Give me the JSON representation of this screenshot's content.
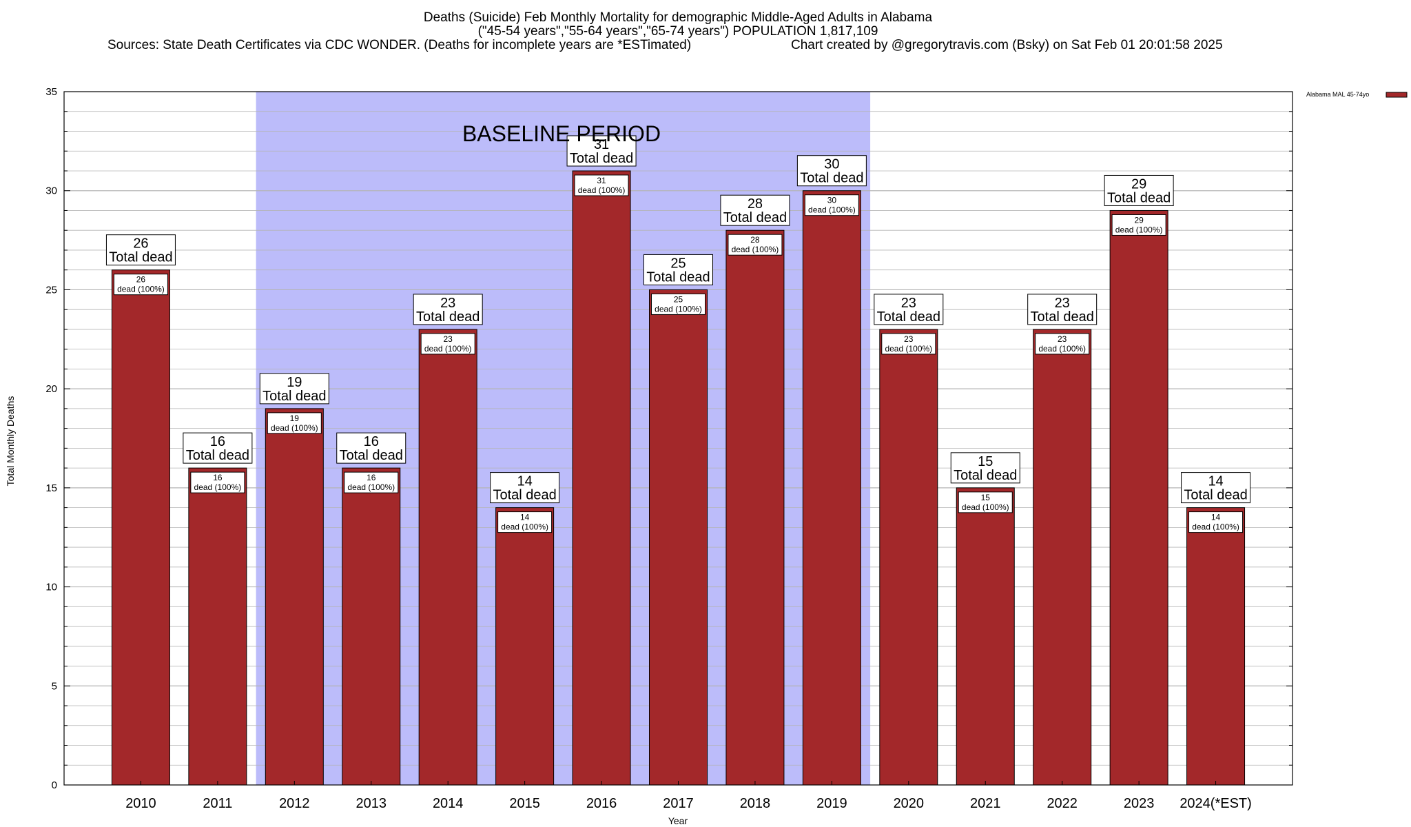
{
  "header": {
    "title_line1": "Deaths (Suicide) Feb Monthly Mortality for demographic Middle-Aged Adults in Alabama",
    "title_line2": "(\"45-54 years\",\"55-64 years\",\"65-74 years\") POPULATION 1,817,109",
    "sources": "Sources: State Death Certificates via CDC WONDER. (Deaths for incomplete years are *ESTimated)",
    "credit": "Chart created by @gregorytravis.com (Bsky) on Sat Feb 01 20:01:58 2025"
  },
  "colors": {
    "bar": "#a3282a",
    "baseline_band": "#bcbcfa",
    "grid": "#b4b4b4"
  },
  "chart_data": {
    "type": "bar",
    "xlabel": "Year",
    "ylabel": "Total Monthly Deaths",
    "ylim": [
      0,
      35
    ],
    "y_major_ticks": [
      0,
      5,
      10,
      15,
      20,
      25,
      30,
      35
    ],
    "y_minor_step": 1,
    "categories": [
      "2010",
      "2011",
      "2012",
      "2013",
      "2014",
      "2015",
      "2016",
      "2017",
      "2018",
      "2019",
      "2020",
      "2021",
      "2022",
      "2023",
      "2024(*EST)"
    ],
    "series": [
      {
        "name": "Alabama MAL 45-74yo",
        "values": [
          26,
          16,
          19,
          16,
          23,
          14,
          31,
          25,
          28,
          30,
          23,
          15,
          23,
          29,
          14
        ]
      }
    ],
    "total_label": "Total dead",
    "inner_label": "dead (100%)",
    "baseline_period": {
      "label": "BASELINE PERIOD",
      "from": "2012",
      "to": "2019"
    },
    "legend": {
      "entry": "Alabama MAL 45-74yo",
      "position": "top-right outside"
    }
  }
}
